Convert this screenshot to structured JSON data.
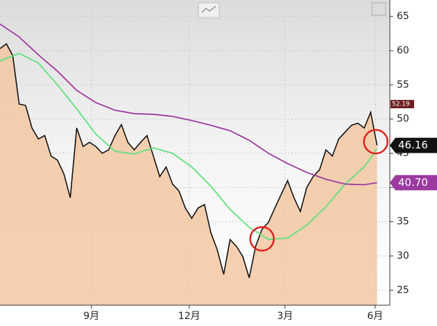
{
  "chart_data": {
    "type": "line",
    "fill_under": 0,
    "fill_color": "#f2c7a2",
    "series": [
      {
        "color": "#111111",
        "x": [
          0,
          1,
          2,
          3,
          4,
          5,
          6,
          7,
          8,
          9,
          10,
          11,
          12,
          13,
          14,
          15,
          16,
          17,
          18,
          19,
          20,
          21,
          22,
          23,
          24,
          25,
          26,
          27,
          28,
          29,
          30,
          31,
          32,
          33,
          34,
          35,
          36,
          37,
          38,
          39,
          40,
          41,
          42,
          43,
          44,
          45,
          46,
          47,
          48,
          49,
          50,
          51,
          52,
          53,
          54,
          55,
          56,
          57,
          58,
          59
        ],
        "values": [
          60.3,
          61,
          59.3,
          52.2,
          52,
          48.7,
          47.1,
          47.6,
          44.6,
          44,
          42,
          38.5,
          48.7,
          46,
          46.6,
          46,
          45,
          45.5,
          47.6,
          49.2,
          46.6,
          45.5,
          46.6,
          47.6,
          44.6,
          41.6,
          43,
          40.5,
          39.5,
          37,
          35.5,
          37,
          37.5,
          33.4,
          30.9,
          27.3,
          32.4,
          31.4,
          29.9,
          26.8,
          31.4,
          33.9,
          34.9,
          37,
          39,
          41,
          38.5,
          36.5,
          40,
          41.6,
          42.6,
          45.5,
          44.6,
          47.1,
          48.1,
          49.1,
          49.4,
          48.7,
          51,
          46.16
        ],
        "value_labels": [
          null,
          null,
          null,
          null,
          null,
          null,
          null,
          null,
          null,
          null,
          null,
          null,
          null,
          null,
          null,
          null,
          null,
          null,
          null,
          null,
          null,
          null,
          null,
          null,
          null,
          null,
          null,
          null,
          null,
          null,
          null,
          null,
          null,
          null,
          null,
          null,
          null,
          null,
          null,
          null,
          null,
          null,
          null,
          null,
          null,
          null,
          null,
          null,
          null,
          null,
          null,
          null,
          null,
          null,
          null,
          null,
          null,
          null,
          null,
          "46.16"
        ]
      },
      {
        "color": "#5fe07a",
        "x": [
          0,
          3,
          6,
          9,
          12,
          15,
          18,
          21,
          24,
          27,
          30,
          33,
          36,
          39,
          42,
          45,
          48,
          51,
          54,
          57,
          59
        ],
        "values": [
          58.5,
          59.6,
          58.2,
          55,
          51.5,
          47.8,
          45.3,
          44.9,
          45.8,
          45,
          43,
          40.2,
          36.8,
          34.2,
          32.4,
          32.6,
          34.5,
          37.2,
          40.5,
          43,
          45.7
        ]
      },
      {
        "color": "#9b3aa0",
        "x": [
          0,
          3,
          6,
          9,
          12,
          15,
          18,
          21,
          24,
          27,
          30,
          33,
          36,
          39,
          42,
          45,
          48,
          51,
          54,
          57,
          59
        ],
        "values": [
          63.9,
          62,
          59.4,
          57,
          54.2,
          52.4,
          51.3,
          50.8,
          50.7,
          50.4,
          49.8,
          49.1,
          48.3,
          46.9,
          45,
          43.5,
          42.2,
          41.2,
          40.5,
          40.4,
          40.7
        ],
        "value_labels": [
          null,
          null,
          null,
          null,
          null,
          null,
          null,
          null,
          null,
          null,
          null,
          null,
          null,
          null,
          null,
          null,
          null,
          null,
          null,
          null,
          "40.70"
        ]
      }
    ],
    "reference_label": {
      "value": 52.19,
      "color": "#6e1f1f"
    },
    "highlights": [
      {
        "x": 41,
        "y": 32.5
      },
      {
        "x": 58.8,
        "y": 46.7
      }
    ],
    "highlight_color": "#e0201c",
    "xlim": [
      0,
      61
    ],
    "xticks": [
      {
        "value": 14.3,
        "label": "9月"
      },
      {
        "value": 29.6,
        "label": "12月"
      },
      {
        "value": 44.6,
        "label": "3月"
      },
      {
        "value": 58.7,
        "label": "6月"
      }
    ],
    "ylim": [
      22.8,
      66.9
    ],
    "yticks": [
      25,
      30,
      35,
      40,
      45,
      50,
      55,
      60,
      65
    ],
    "grid": true
  }
}
